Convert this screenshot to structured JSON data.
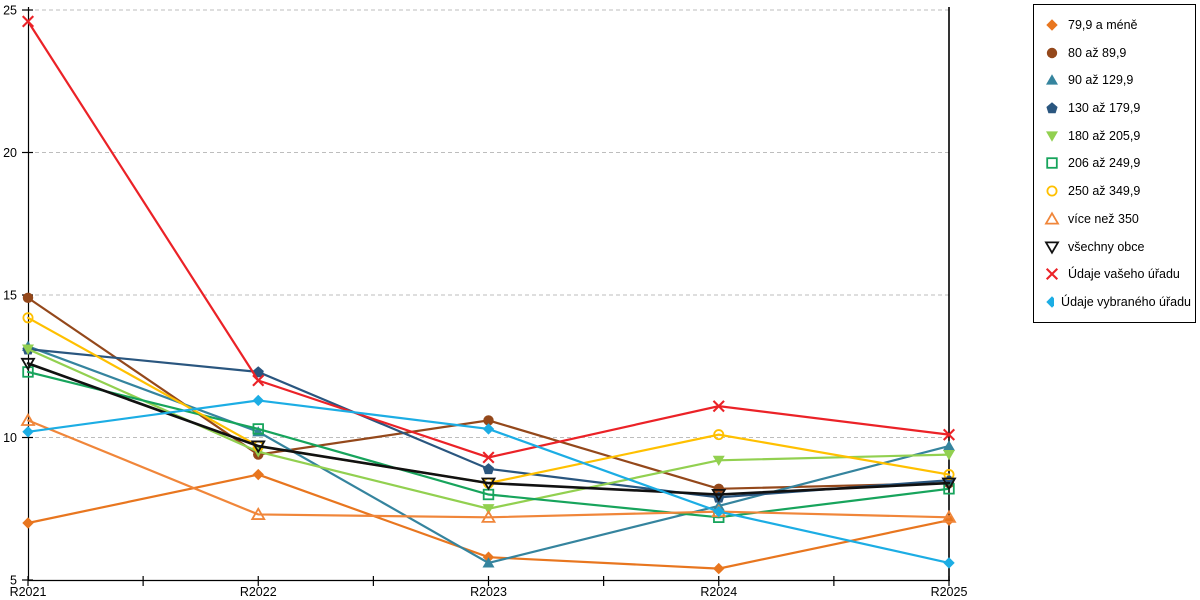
{
  "chart_data": {
    "type": "line",
    "title": "",
    "x_categories": [
      "R2021",
      "R2022",
      "R2023",
      "R2024",
      "R2025"
    ],
    "yticks": [
      5,
      10,
      15,
      20,
      25
    ],
    "ylim": [
      5,
      25
    ],
    "grid": "horizontal-dashed",
    "gridline_color": "#bdbdbd",
    "axis_color": "#000000",
    "legend_position": "right",
    "series": [
      {
        "name": "79,9 a méně",
        "marker": "diamond",
        "filled": true,
        "color": "#E8761F",
        "values": [
          7.0,
          8.7,
          5.8,
          5.4,
          7.1
        ]
      },
      {
        "name": "80 až 89,9",
        "marker": "circle",
        "filled": true,
        "color": "#94481B",
        "values": [
          14.9,
          9.4,
          10.6,
          8.2,
          8.4
        ]
      },
      {
        "name": "90 až 129,9",
        "marker": "triangle-up",
        "filled": true,
        "color": "#35849E",
        "values": [
          13.2,
          10.2,
          5.6,
          7.6,
          9.7
        ]
      },
      {
        "name": "130 až 179,9",
        "marker": "pentagon",
        "filled": true,
        "color": "#2A567F",
        "values": [
          13.1,
          12.3,
          8.9,
          7.9,
          8.5
        ]
      },
      {
        "name": "180 až 205,9",
        "marker": "triangle-down",
        "filled": true,
        "color": "#92D050",
        "values": [
          13.1,
          9.5,
          7.5,
          9.2,
          9.4
        ]
      },
      {
        "name": "206 až 249,9",
        "marker": "square",
        "filled": false,
        "color": "#17A45C",
        "values": [
          12.3,
          10.3,
          8.0,
          7.2,
          8.2
        ]
      },
      {
        "name": "250 až 349,9",
        "marker": "circle",
        "filled": false,
        "color": "#FFC000",
        "values": [
          14.2,
          9.7,
          8.4,
          10.1,
          8.7
        ]
      },
      {
        "name": "více než 350",
        "marker": "triangle-up",
        "filled": false,
        "color": "#F0863A",
        "values": [
          10.6,
          7.3,
          7.2,
          7.4,
          7.2
        ]
      },
      {
        "name": "všechny obce",
        "marker": "triangle-down",
        "filled": false,
        "color": "#111111",
        "values": [
          12.6,
          9.7,
          8.4,
          8.0,
          8.4
        ]
      },
      {
        "name": "Údaje vašeho úřadu",
        "marker": "x",
        "filled": false,
        "color": "#EB2227",
        "values": [
          24.6,
          12.0,
          9.3,
          11.1,
          10.1
        ]
      },
      {
        "name": "Údaje vybraného úřadu",
        "marker": "diamond",
        "filled": true,
        "color": "#1CADE4",
        "values": [
          10.2,
          11.3,
          10.3,
          7.4,
          5.6
        ]
      }
    ]
  }
}
